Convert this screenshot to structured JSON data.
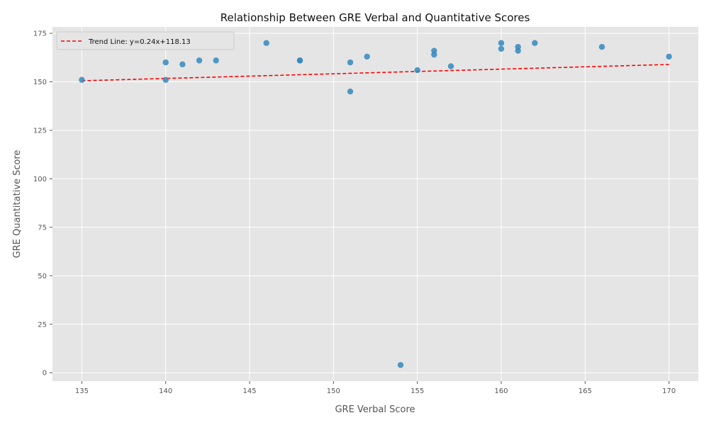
{
  "chart_data": {
    "type": "scatter",
    "title": "Relationship Between GRE Verbal and Quantitative Scores",
    "xlabel": "GRE Verbal Score",
    "ylabel": "GRE Quantitative Score",
    "xlim": [
      133.25,
      171.75
    ],
    "ylim": [
      -4.3,
      178.3
    ],
    "x_ticks": [
      135,
      140,
      145,
      150,
      155,
      160,
      165,
      170
    ],
    "y_ticks": [
      0,
      25,
      50,
      75,
      100,
      125,
      150,
      175
    ],
    "grid": true,
    "legend_position": "top-left",
    "series": [
      {
        "name": "",
        "kind": "scatter",
        "color": "#348ABD",
        "points": [
          [
            135,
            151
          ],
          [
            140,
            160
          ],
          [
            140,
            151
          ],
          [
            141,
            159
          ],
          [
            142,
            161
          ],
          [
            143,
            161
          ],
          [
            146,
            170
          ],
          [
            148,
            161
          ],
          [
            148,
            161
          ],
          [
            151,
            160
          ],
          [
            151,
            145
          ],
          [
            152,
            163
          ],
          [
            154,
            4
          ],
          [
            155,
            156
          ],
          [
            156,
            166
          ],
          [
            156,
            164
          ],
          [
            157,
            158
          ],
          [
            160,
            170
          ],
          [
            160,
            167
          ],
          [
            161,
            168
          ],
          [
            161,
            166
          ],
          [
            162,
            170
          ],
          [
            166,
            168
          ],
          [
            170,
            163
          ]
        ]
      },
      {
        "name": "Trend Line: y=0.24x+118.13",
        "kind": "trend",
        "color": "#ff0000",
        "slope": 0.24,
        "intercept": 118.13,
        "x_range": [
          135,
          170
        ]
      }
    ]
  }
}
